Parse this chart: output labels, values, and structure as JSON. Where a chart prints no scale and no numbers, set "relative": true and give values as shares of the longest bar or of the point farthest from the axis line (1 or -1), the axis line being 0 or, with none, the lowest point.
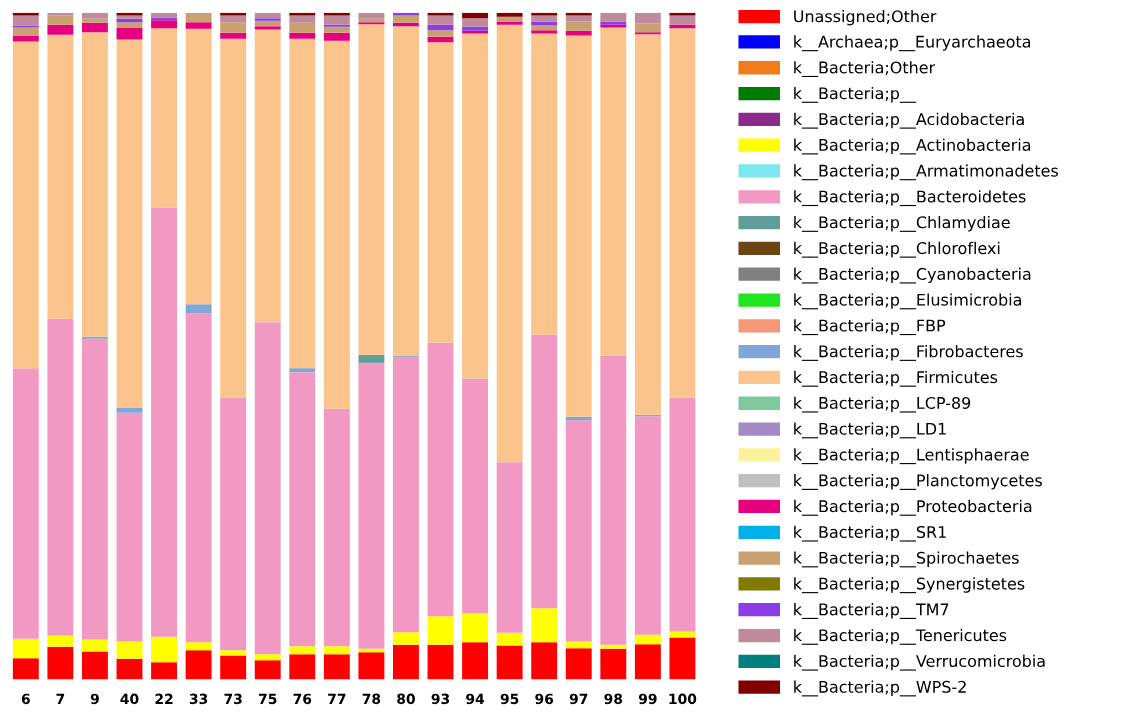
{
  "chart_data": {
    "type": "bar",
    "stacked": true,
    "relative": true,
    "legend": "right",
    "categories": [
      "6",
      "7",
      "9",
      "40",
      "22",
      "33",
      "73",
      "75",
      "76",
      "77",
      "78",
      "80",
      "93",
      "94",
      "95",
      "96",
      "97",
      "98",
      "99",
      "100"
    ],
    "series": [
      {
        "name": "Unassigned;Other",
        "color": "#ff0000",
        "values": [
          0.032,
          0.049,
          0.042,
          0.031,
          0.026,
          0.044,
          0.036,
          0.029,
          0.038,
          0.038,
          0.041,
          0.052,
          0.052,
          0.056,
          0.051,
          0.056,
          0.047,
          0.046,
          0.053,
          0.063
        ]
      },
      {
        "name": "k__Archaea;p__Euryarchaeota",
        "color": "#0000ff",
        "values": [
          0,
          0,
          0,
          0,
          0,
          0,
          0,
          0,
          0,
          0,
          0,
          0,
          0,
          0,
          0,
          0,
          0,
          0,
          0,
          0
        ]
      },
      {
        "name": "k__Bacteria;Other",
        "color": "#f07d1a",
        "values": [
          0,
          0,
          0,
          0,
          0,
          0,
          0,
          0,
          0,
          0,
          0,
          0,
          0,
          0,
          0,
          0,
          0,
          0,
          0,
          0
        ]
      },
      {
        "name": "k__Bacteria;p__",
        "color": "#007a00",
        "values": [
          0,
          0,
          0,
          0,
          0,
          0,
          0,
          0,
          0,
          0,
          0,
          0,
          0,
          0,
          0,
          0,
          0,
          0,
          0,
          0
        ]
      },
      {
        "name": "k__Bacteria;p__Acidobacteria",
        "color": "#8b2a8b",
        "values": [
          0,
          0,
          0,
          0,
          0,
          0,
          0,
          0,
          0,
          0,
          0,
          0,
          0,
          0,
          0,
          0,
          0,
          0,
          0,
          0
        ]
      },
      {
        "name": "k__Bacteria;p__Actinobacteria",
        "color": "#ffff00",
        "values": [
          0.029,
          0.017,
          0.018,
          0.026,
          0.038,
          0.012,
          0.008,
          0.009,
          0.012,
          0.012,
          0.005,
          0.019,
          0.043,
          0.043,
          0.019,
          0.051,
          0.01,
          0.006,
          0.014,
          0.009
        ]
      },
      {
        "name": "k__Bacteria;p__Armatimonadetes",
        "color": "#7ee6ee",
        "values": [
          0,
          0,
          0,
          0,
          0,
          0,
          0,
          0,
          0,
          0,
          0,
          0,
          0,
          0,
          0,
          0,
          0,
          0,
          0,
          0
        ]
      },
      {
        "name": "k__Bacteria;p__Bacteroidetes",
        "color": "#f299c3",
        "values": [
          0.406,
          0.475,
          0.451,
          0.343,
          0.644,
          0.493,
          0.379,
          0.498,
          0.411,
          0.356,
          0.429,
          0.413,
          0.41,
          0.352,
          0.256,
          0.41,
          0.332,
          0.434,
          0.328,
          0.351
        ]
      },
      {
        "name": "k__Bacteria;p__Chlamydiae",
        "color": "#5f9e99",
        "values": [
          0,
          0,
          0,
          0,
          0,
          0,
          0,
          0,
          0,
          0,
          0.012,
          0,
          0,
          0,
          0,
          0,
          0,
          0,
          0,
          0
        ]
      },
      {
        "name": "k__Bacteria;p__Chloroflexi",
        "color": "#6b4513",
        "values": [
          0,
          0,
          0,
          0,
          0,
          0,
          0,
          0,
          0,
          0,
          0,
          0,
          0,
          0,
          0,
          0,
          0,
          0,
          0,
          0
        ]
      },
      {
        "name": "k__Bacteria;p__Cyanobacteria",
        "color": "#808080",
        "values": [
          0,
          0,
          0,
          0,
          0,
          0,
          0,
          0,
          0,
          0,
          0,
          0,
          0,
          0,
          0,
          0,
          0,
          0,
          0,
          0
        ]
      },
      {
        "name": "k__Bacteria;p__Elusimicrobia",
        "color": "#1fe61f",
        "values": [
          0,
          0,
          0,
          0,
          0,
          0,
          0,
          0,
          0,
          0,
          0,
          0,
          0,
          0,
          0,
          0,
          0,
          0,
          0,
          0
        ]
      },
      {
        "name": "k__Bacteria;p__FBP",
        "color": "#f5987a",
        "values": [
          0,
          0,
          0,
          0,
          0,
          0,
          0,
          0,
          0,
          0,
          0,
          0,
          0,
          0,
          0,
          0,
          0,
          0,
          0,
          0
        ]
      },
      {
        "name": "k__Bacteria;p__Fibrobacteres",
        "color": "#7ea6d8",
        "values": [
          0,
          0,
          0.003,
          0.008,
          0,
          0.014,
          0,
          0,
          0.006,
          0,
          0,
          0.002,
          0,
          0,
          0,
          0,
          0.005,
          0,
          0.002,
          0
        ]
      },
      {
        "name": "k__Bacteria;p__Firmicutes",
        "color": "#fac48c",
        "values": [
          0.49,
          0.426,
          0.457,
          0.552,
          0.269,
          0.413,
          0.538,
          0.439,
          0.494,
          0.552,
          0.496,
          0.494,
          0.451,
          0.518,
          0.656,
          0.452,
          0.572,
          0.492,
          0.571,
          0.554
        ]
      },
      {
        "name": "k__Bacteria;p__LCP-89",
        "color": "#80c99c",
        "values": [
          0,
          0,
          0,
          0,
          0,
          0,
          0,
          0,
          0,
          0,
          0,
          0,
          0,
          0,
          0,
          0,
          0,
          0,
          0,
          0
        ]
      },
      {
        "name": "k__Bacteria;p__LD1",
        "color": "#a48ac4",
        "values": [
          0,
          0,
          0,
          0,
          0,
          0,
          0,
          0,
          0,
          0,
          0,
          0,
          0,
          0,
          0,
          0,
          0,
          0,
          0,
          0
        ]
      },
      {
        "name": "k__Bacteria;p__Lentisphaerae",
        "color": "#fcf29c",
        "values": [
          0,
          0,
          0,
          0,
          0,
          0,
          0,
          0,
          0,
          0,
          0,
          0,
          0,
          0,
          0,
          0,
          0,
          0,
          0,
          0
        ]
      },
      {
        "name": "k__Bacteria;p__Planctomycetes",
        "color": "#c0c0c0",
        "values": [
          0,
          0,
          0,
          0,
          0,
          0,
          0,
          0,
          0,
          0,
          0,
          0,
          0,
          0,
          0,
          0,
          0,
          0,
          0,
          0
        ]
      },
      {
        "name": "k__Bacteria;p__Proteobacteria",
        "color": "#e6007e",
        "values": [
          0.009,
          0.015,
          0.014,
          0.018,
          0.012,
          0.01,
          0.009,
          0.005,
          0.009,
          0.012,
          0.003,
          0.005,
          0.008,
          0.004,
          0.005,
          0.005,
          0.007,
          0.004,
          0.003,
          0.005
        ]
      },
      {
        "name": "k__Bacteria;p__SR1",
        "color": "#00b0e8",
        "values": [
          0,
          0,
          0,
          0,
          0,
          0,
          0,
          0,
          0,
          0,
          0,
          0,
          0,
          0,
          0,
          0,
          0,
          0,
          0,
          0
        ]
      },
      {
        "name": "k__Bacteria;p__Spirochaetes",
        "color": "#c9a070",
        "values": [
          0.012,
          0.014,
          0.006,
          0.008,
          0,
          0.014,
          0.016,
          0.008,
          0.015,
          0.009,
          0.005,
          0.011,
          0.01,
          0,
          0.007,
          0.007,
          0.014,
          0,
          0.013,
          0
        ]
      },
      {
        "name": "k__Bacteria;p__Synergistetes",
        "color": "#807a00",
        "values": [
          0,
          0,
          0,
          0,
          0,
          0,
          0,
          0,
          0,
          0,
          0,
          0,
          0,
          0,
          0,
          0,
          0,
          0,
          0,
          0
        ]
      },
      {
        "name": "k__Bacteria;p__TM7",
        "color": "#8b3de8",
        "values": [
          0.003,
          0,
          0,
          0.005,
          0.004,
          0,
          0,
          0.004,
          0,
          0.003,
          0,
          0.004,
          0.008,
          0.006,
          0,
          0.006,
          0,
          0.005,
          0,
          0
        ]
      },
      {
        "name": "k__Bacteria;p__Tenericutes",
        "color": "#c08a9c",
        "values": [
          0.015,
          0.004,
          0.009,
          0.005,
          0.007,
          0,
          0.01,
          0.008,
          0.011,
          0.014,
          0.009,
          0,
          0.014,
          0.013,
          0,
          0.009,
          0.009,
          0.013,
          0.016,
          0.014
        ]
      },
      {
        "name": "k__Bacteria;p__Verrucomicrobia",
        "color": "#007f7f",
        "values": [
          0,
          0,
          0,
          0,
          0,
          0,
          0,
          0,
          0,
          0,
          0,
          0,
          0,
          0,
          0,
          0,
          0,
          0,
          0,
          0
        ]
      },
      {
        "name": "k__Bacteria;p__WPS-2",
        "color": "#800000",
        "values": [
          0.004,
          0,
          0,
          0.004,
          0,
          0,
          0.004,
          0,
          0.004,
          0.004,
          0,
          0,
          0.004,
          0.008,
          0.006,
          0.004,
          0.004,
          0,
          0,
          0.004
        ]
      }
    ]
  }
}
